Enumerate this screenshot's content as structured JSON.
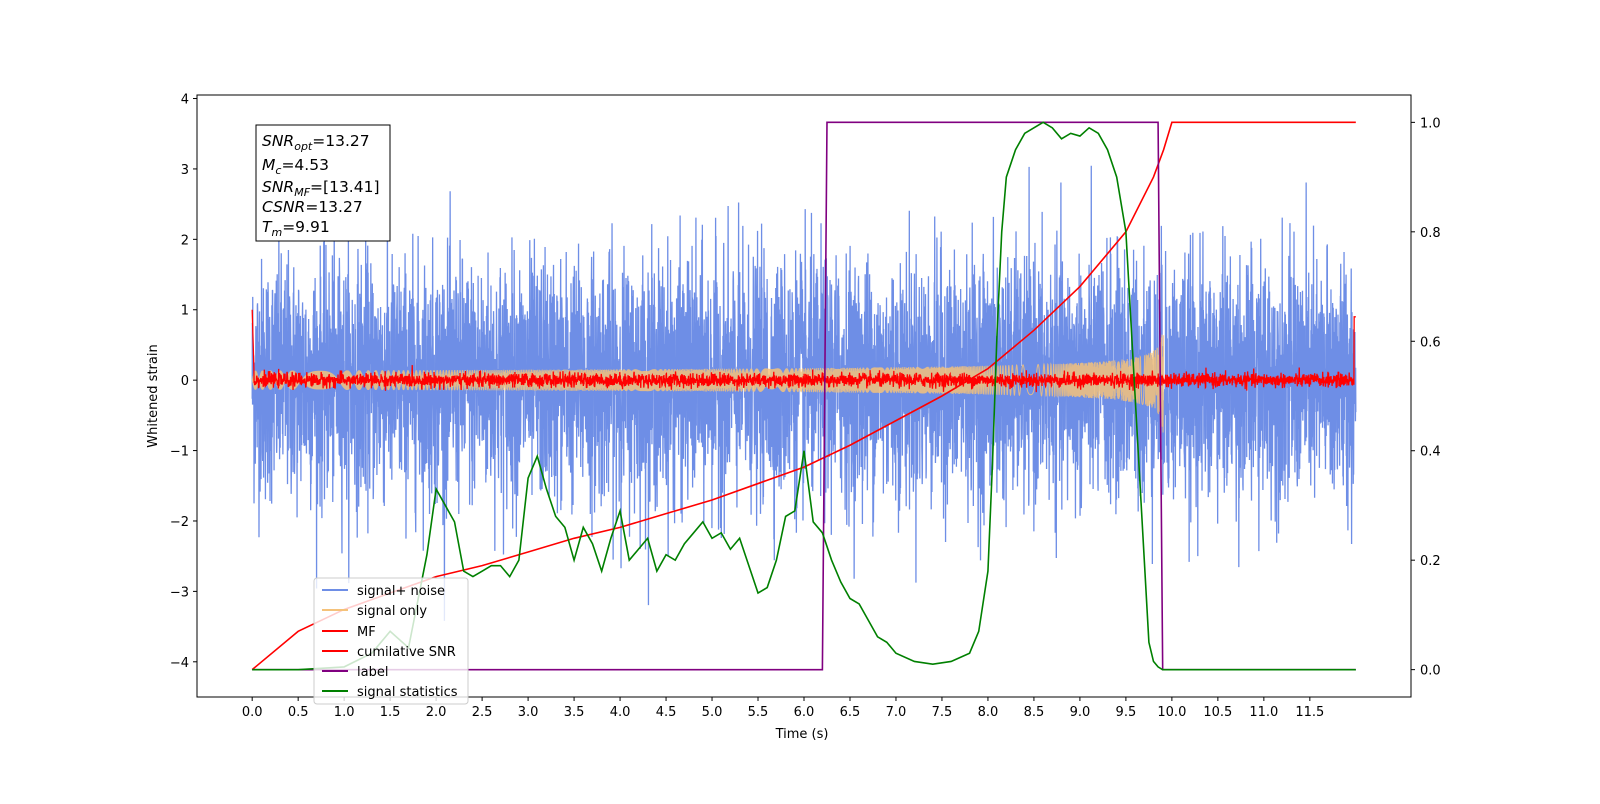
{
  "chart_data": {
    "type": "line",
    "xlabel": "Time (s)",
    "ylabel_left": "Whitened strain",
    "xlim": [
      -0.6,
      12.6
    ],
    "ylim_left": [
      -4.5,
      4.05
    ],
    "ylim_right": [
      -0.05,
      1.05
    ],
    "x_ticks": [
      "0.0",
      "0.5",
      "1.0",
      "1.5",
      "2.0",
      "2.5",
      "3.0",
      "3.5",
      "4.0",
      "4.5",
      "5.0",
      "5.5",
      "6.0",
      "6.5",
      "7.0",
      "7.5",
      "8.0",
      "8.5",
      "9.0",
      "9.5",
      "10.0",
      "10.5",
      "11.0",
      "11.5"
    ],
    "y_ticks_left": [
      "4",
      "3",
      "2",
      "1",
      "0",
      "−1",
      "−2",
      "−3",
      "−4"
    ],
    "y_ticks_right": [
      "1.0",
      "0.8",
      "0.6",
      "0.4",
      "0.2",
      "0.0"
    ],
    "grid": false,
    "legend_position": "lower-left",
    "annotation": {
      "snr_opt": {
        "name": "SNR",
        "sub": "opt",
        "value": "=13.27"
      },
      "mc": {
        "name": "M",
        "sub": "c",
        "value": "=4.53"
      },
      "snr_mf": {
        "name": "SNR",
        "sub": "MF",
        "value": "=[13.41]"
      },
      "csnr": {
        "name": "CSNR",
        "sub": "",
        "value": "=13.27"
      },
      "tm": {
        "name": "T",
        "sub": "m",
        "value": "=9.91"
      }
    },
    "series": [
      {
        "name": "signal+ noise",
        "axis": "left",
        "color": "#6e8ee6",
        "style": "noise",
        "x_range": [
          0,
          12
        ],
        "amplitude_std": 0.85,
        "envelope_peak": [
          -4.15,
          3.65
        ]
      },
      {
        "name": "signal only",
        "axis": "left",
        "color": "#f5c27a",
        "style": "chirp",
        "x_range": [
          0,
          9.91
        ],
        "amplitude_at_end": 0.85
      },
      {
        "name": "MF",
        "axis": "left",
        "color": "#ff0000",
        "style": "noise",
        "x_range": [
          0,
          12
        ],
        "amplitude_std": 0.05
      },
      {
        "name": "cumilative SNR",
        "axis": "right",
        "color": "#ff0000",
        "x": [
          0.0,
          0.5,
          1.0,
          1.5,
          2.0,
          2.5,
          3.0,
          3.5,
          4.0,
          4.5,
          5.0,
          5.5,
          6.0,
          6.5,
          7.0,
          7.5,
          8.0,
          8.5,
          9.0,
          9.5,
          9.8,
          9.91,
          10.0,
          12.0
        ],
        "y": [
          0.0,
          0.07,
          0.11,
          0.14,
          0.17,
          0.19,
          0.215,
          0.24,
          0.26,
          0.285,
          0.31,
          0.34,
          0.37,
          0.41,
          0.455,
          0.5,
          0.55,
          0.62,
          0.7,
          0.8,
          0.9,
          0.95,
          1.0,
          1.0
        ]
      },
      {
        "name": "label",
        "axis": "right",
        "color": "#800080",
        "x": [
          0.0,
          6.2,
          6.25,
          9.85,
          9.9,
          12.0
        ],
        "y": [
          0.0,
          0.0,
          1.0,
          1.0,
          0.0,
          0.0
        ]
      },
      {
        "name": "signal statistics",
        "axis": "right",
        "color": "#008000",
        "x": [
          0.0,
          0.5,
          1.0,
          1.3,
          1.5,
          1.7,
          1.9,
          2.0,
          2.1,
          2.2,
          2.3,
          2.4,
          2.5,
          2.6,
          2.7,
          2.8,
          2.9,
          3.0,
          3.1,
          3.2,
          3.3,
          3.4,
          3.5,
          3.6,
          3.7,
          3.8,
          3.9,
          4.0,
          4.1,
          4.2,
          4.3,
          4.4,
          4.5,
          4.6,
          4.7,
          4.8,
          4.9,
          5.0,
          5.1,
          5.2,
          5.3,
          5.4,
          5.5,
          5.6,
          5.7,
          5.8,
          5.9,
          6.0,
          6.1,
          6.2,
          6.3,
          6.4,
          6.5,
          6.6,
          6.7,
          6.8,
          6.9,
          7.0,
          7.2,
          7.4,
          7.6,
          7.8,
          7.9,
          8.0,
          8.05,
          8.1,
          8.15,
          8.2,
          8.3,
          8.4,
          8.5,
          8.6,
          8.7,
          8.8,
          8.9,
          9.0,
          9.1,
          9.2,
          9.3,
          9.4,
          9.5,
          9.6,
          9.7,
          9.75,
          9.8,
          9.85,
          9.9,
          10.0,
          11.0,
          12.0
        ],
        "y": [
          0.0,
          0.0,
          0.005,
          0.03,
          0.07,
          0.04,
          0.21,
          0.33,
          0.3,
          0.27,
          0.18,
          0.17,
          0.18,
          0.19,
          0.19,
          0.17,
          0.2,
          0.35,
          0.39,
          0.33,
          0.28,
          0.26,
          0.2,
          0.26,
          0.23,
          0.18,
          0.24,
          0.29,
          0.2,
          0.22,
          0.24,
          0.18,
          0.21,
          0.2,
          0.23,
          0.25,
          0.27,
          0.24,
          0.25,
          0.22,
          0.24,
          0.19,
          0.14,
          0.15,
          0.2,
          0.28,
          0.29,
          0.4,
          0.27,
          0.25,
          0.2,
          0.16,
          0.13,
          0.12,
          0.09,
          0.06,
          0.05,
          0.03,
          0.015,
          0.01,
          0.015,
          0.03,
          0.07,
          0.18,
          0.38,
          0.62,
          0.8,
          0.9,
          0.95,
          0.98,
          0.99,
          1.0,
          0.99,
          0.97,
          0.98,
          0.975,
          0.99,
          0.98,
          0.95,
          0.9,
          0.8,
          0.5,
          0.2,
          0.05,
          0.015,
          0.005,
          0.0,
          0.0,
          0.0,
          0.0
        ]
      }
    ]
  }
}
